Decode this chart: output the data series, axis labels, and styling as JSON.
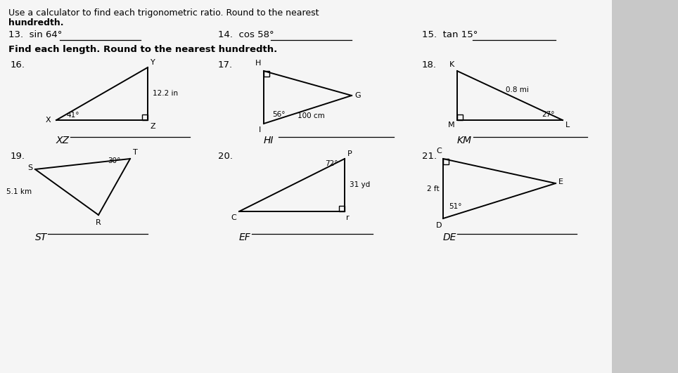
{
  "title_line1": "Use a calculator to find each trigonometric ratio. Round to the nearest",
  "title_line2": "hundredth.",
  "q13": "13.  sin 64°",
  "q14": "14.  cos 58°",
  "q15": "15.  tan 15°",
  "find_length_header": "Find each length. Round to the nearest hundredth.",
  "row1_nums": [
    "16.",
    "17.",
    "18."
  ],
  "row2_nums": [
    "19.",
    "20.",
    "21."
  ],
  "row1_labels": [
    "XZ",
    "HI",
    "KM"
  ],
  "row2_labels": [
    "ST",
    "EF",
    "DE"
  ],
  "bg_paper": "#f2f2f2",
  "bg_right": "#d8d8d8",
  "line_color": "#000000",
  "text_color": "#000000"
}
